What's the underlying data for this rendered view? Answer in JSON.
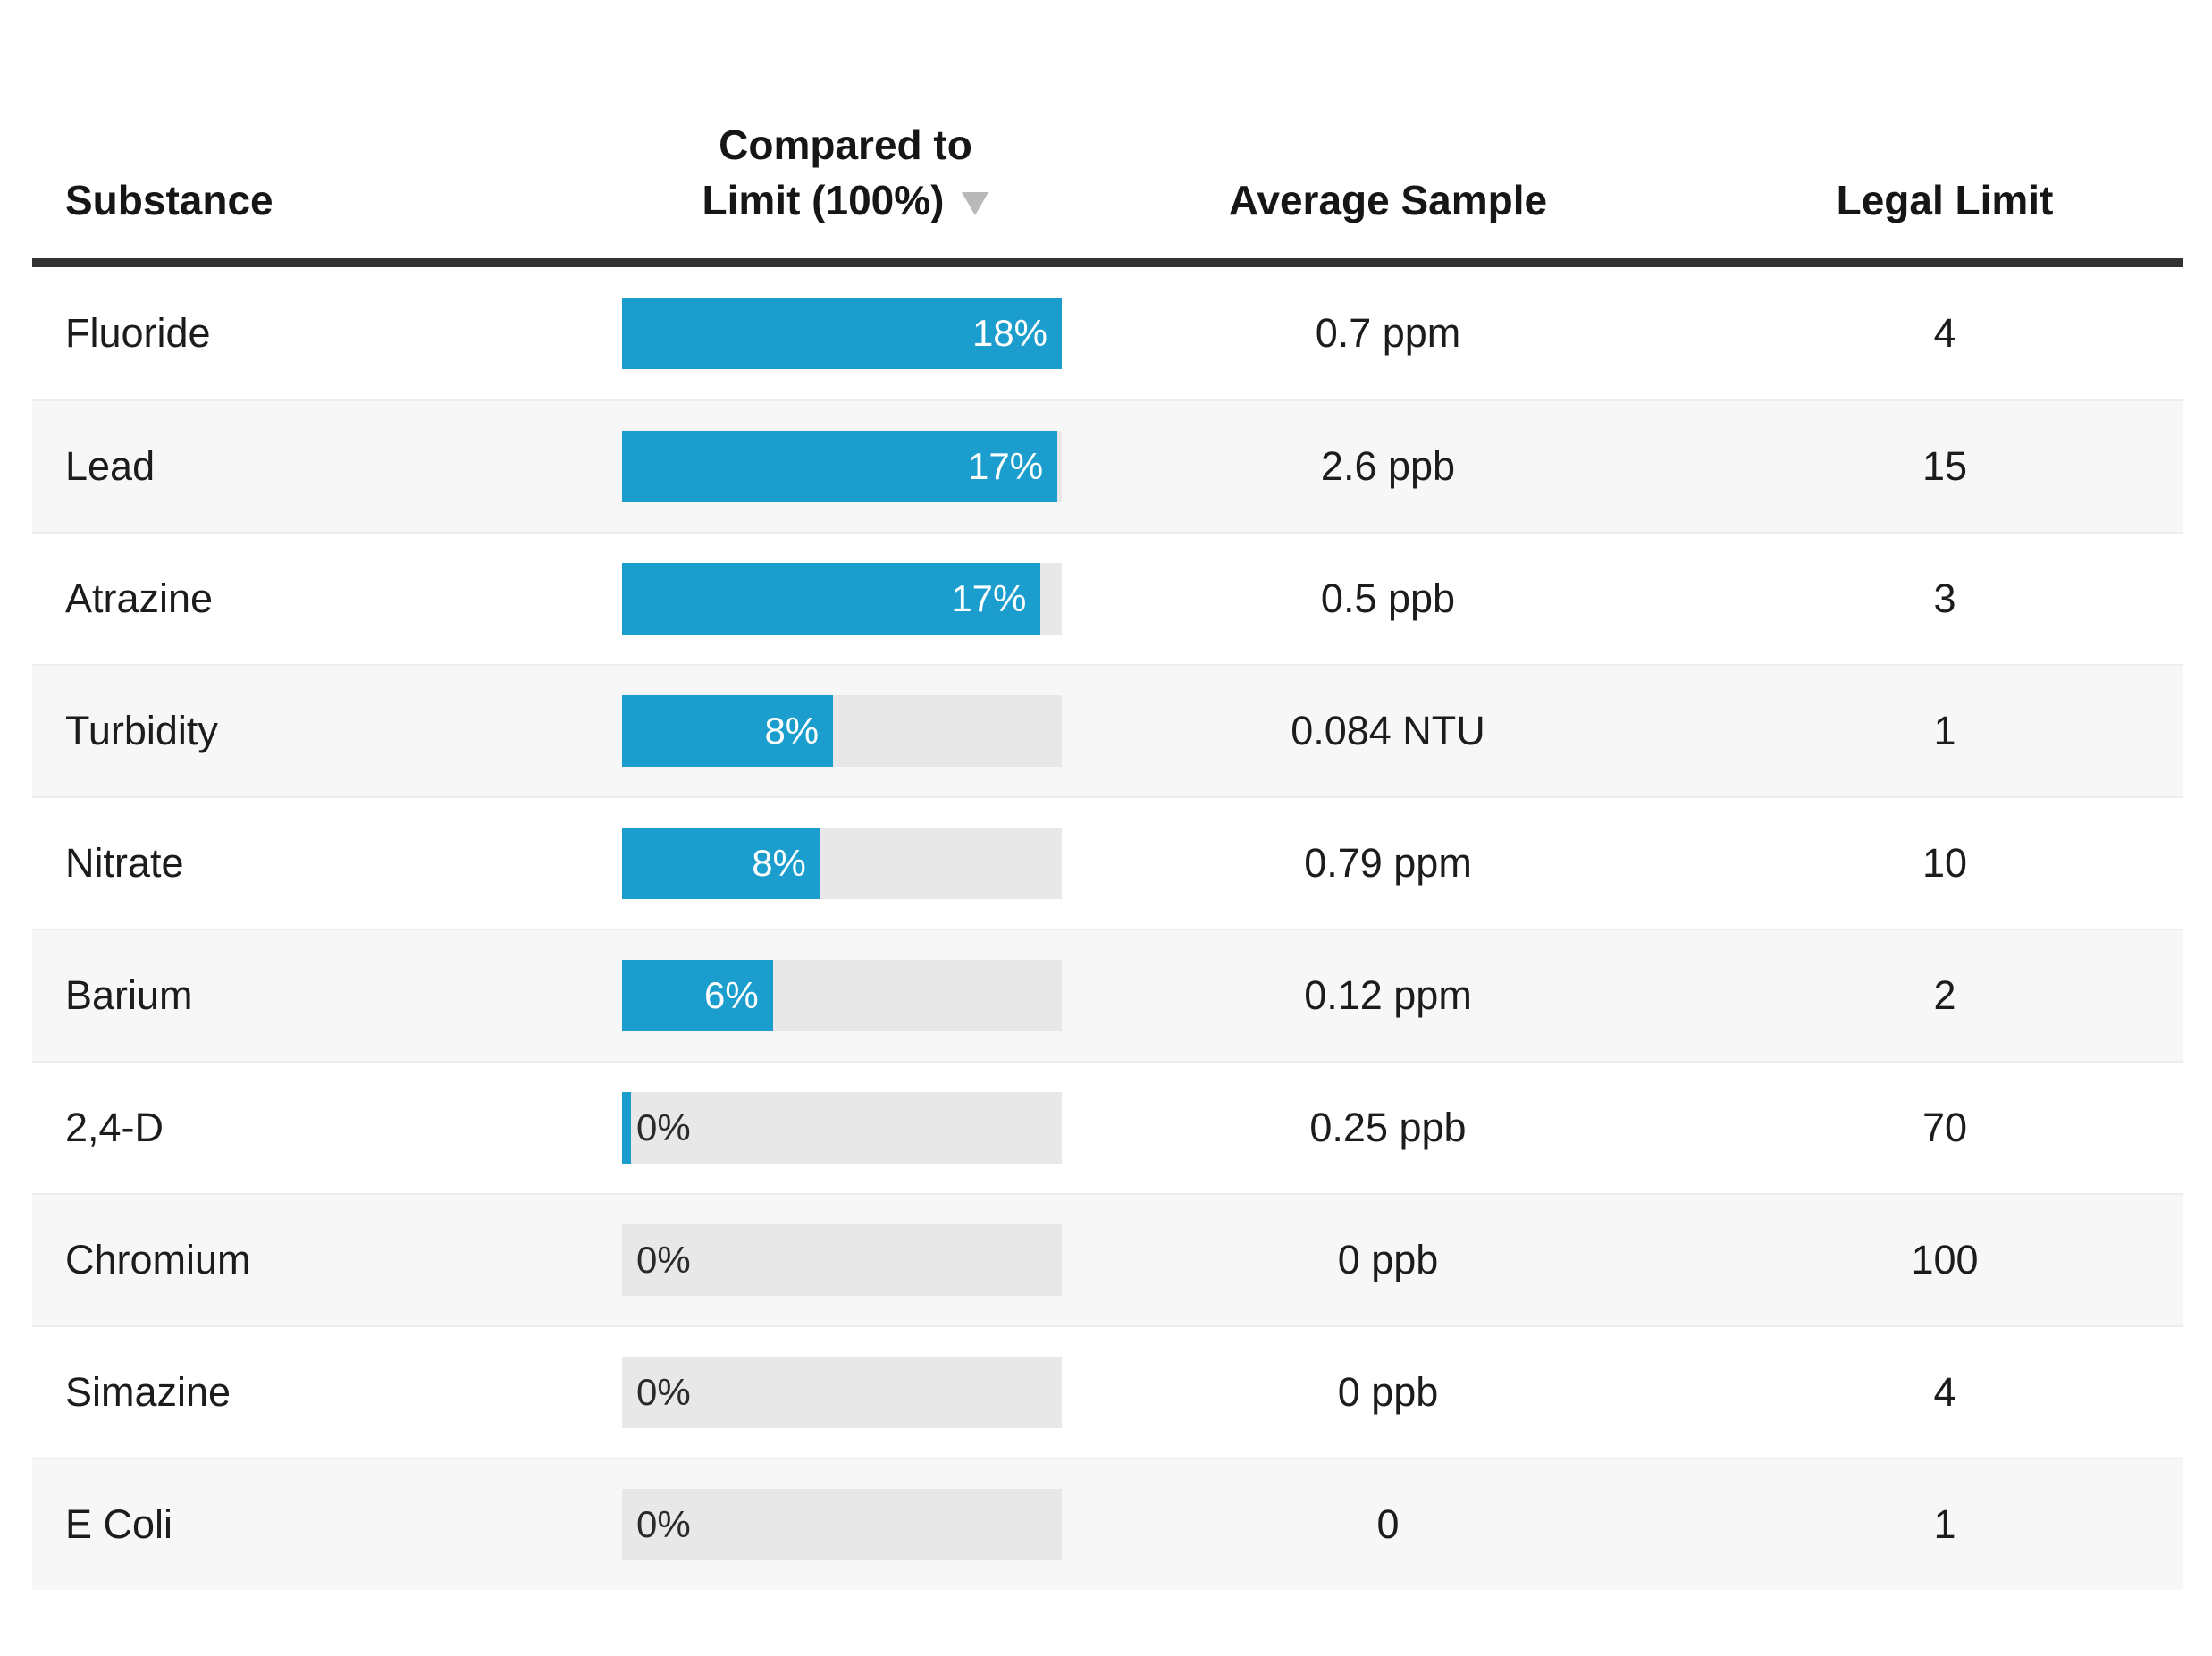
{
  "header": {
    "substance": "Substance",
    "compared_line1": "Compared to",
    "compared_line2": "Limit (100%)",
    "sort_icon": "down-triangle",
    "average_sample": "Average Sample",
    "legal_limit": "Legal Limit"
  },
  "colors": {
    "bar_fill": "#1b9ecd",
    "bar_track": "#e8e8e8",
    "row_alt_bg": "#f7f7f7",
    "header_rule": "#333333",
    "sort_triangle": "#b9b9b9",
    "bar_label_light": "#ffffff",
    "text_dark": "#1c1c1c"
  },
  "rows": [
    {
      "substance": "Fluoride",
      "percent_label": "18%",
      "fill_pct": 100,
      "label_style": "inside",
      "average": "0.7 ppm",
      "limit": "4"
    },
    {
      "substance": "Lead",
      "percent_label": "17%",
      "fill_pct": 99,
      "label_style": "inside",
      "average": "2.6 ppb",
      "limit": "15"
    },
    {
      "substance": "Atrazine",
      "percent_label": "17%",
      "fill_pct": 95.2,
      "label_style": "inside",
      "average": "0.5 ppb",
      "limit": "3"
    },
    {
      "substance": "Turbidity",
      "percent_label": "8%",
      "fill_pct": 48,
      "label_style": "inside",
      "average": "0.084 NTU",
      "limit": "1"
    },
    {
      "substance": "Nitrate",
      "percent_label": "8%",
      "fill_pct": 45.1,
      "label_style": "inside",
      "average": "0.79 ppm",
      "limit": "10"
    },
    {
      "substance": "Barium",
      "percent_label": "6%",
      "fill_pct": 34.3,
      "label_style": "inside",
      "average": "0.12 ppm",
      "limit": "2"
    },
    {
      "substance": "2,4-D",
      "percent_label": "0%",
      "fill_pct": 2,
      "label_style": "outside",
      "average": "0.25 ppb",
      "limit": "70"
    },
    {
      "substance": "Chromium",
      "percent_label": "0%",
      "fill_pct": 0,
      "label_style": "outside",
      "average": "0 ppb",
      "limit": "100"
    },
    {
      "substance": "Simazine",
      "percent_label": "0%",
      "fill_pct": 0,
      "label_style": "outside",
      "average": "0 ppb",
      "limit": "4"
    },
    {
      "substance": "E Coli",
      "percent_label": "0%",
      "fill_pct": 0,
      "label_style": "outside",
      "average": "0",
      "limit": "1"
    }
  ],
  "chart_data": {
    "type": "bar",
    "title": "",
    "columns": [
      "Substance",
      "Compared to Limit (100%)",
      "Average Sample",
      "Legal Limit"
    ],
    "categories": [
      "Fluoride",
      "Lead",
      "Atrazine",
      "Turbidity",
      "Nitrate",
      "Barium",
      "2,4-D",
      "Chromium",
      "Simazine",
      "E Coli"
    ],
    "series": [
      {
        "name": "Compared to Limit (100%)",
        "unit": "%",
        "values": [
          18,
          17,
          17,
          8,
          8,
          6,
          0,
          0,
          0,
          0
        ]
      }
    ],
    "average_sample": [
      "0.7 ppm",
      "2.6 ppb",
      "0.5 ppb",
      "0.084 NTU",
      "0.79 ppm",
      "0.12 ppm",
      "0.25 ppb",
      "0 ppb",
      "0 ppb",
      "0"
    ],
    "legal_limit": [
      4,
      15,
      3,
      1,
      10,
      2,
      70,
      100,
      4,
      1
    ],
    "sort": {
      "column": "Compared to Limit (100%)",
      "direction": "desc"
    },
    "legend_position": "none",
    "grid": false
  }
}
